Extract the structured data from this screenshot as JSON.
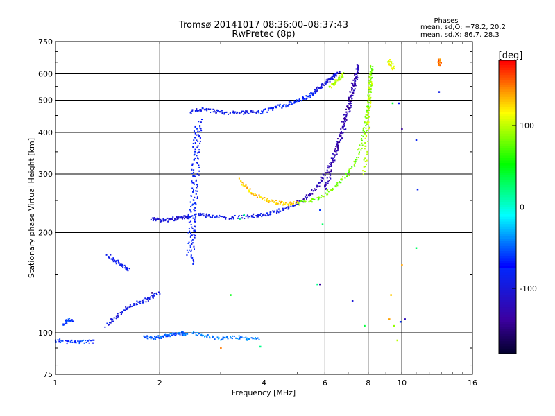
{
  "chart_data": {
    "type": "scatter",
    "title": "Tromsø 20141017 08:36:00–08:37:43",
    "subtitle": "RwPretec (8p)",
    "xlabel": "Frequency [MHz]",
    "ylabel": "Stationary phase Virtual Height [km]",
    "x_scale": "log",
    "y_scale": "log",
    "xlim": [
      1,
      16
    ],
    "ylim": [
      75,
      750
    ],
    "x_ticks": [
      1,
      2,
      4,
      6,
      8,
      10,
      16
    ],
    "y_ticks": [
      75,
      100,
      200,
      300,
      400,
      500,
      600,
      750
    ],
    "grid": true,
    "phases_box": {
      "title": "Phases",
      "line_o": "mean, sd,O: −78.2, 20.2",
      "line_x": "mean, sd,X:  86.7, 28.3"
    },
    "colorbar": {
      "label": "[deg]",
      "range": [
        -180,
        180
      ],
      "ticks": [
        100,
        0,
        -100
      ]
    },
    "traces": [
      {
        "x": [
          1.0,
          1.09,
          1.18,
          1.3
        ],
        "y": [
          95,
          94,
          94,
          94
        ],
        "phase": -60
      },
      {
        "x": [
          1.06,
          1.09,
          1.12
        ],
        "y": [
          105,
          110,
          108
        ],
        "phase": -60
      },
      {
        "x": [
          1.9,
          1.99,
          2.1,
          2.2,
          2.3,
          2.4,
          2.45
        ],
        "y": [
          220,
          218,
          218,
          220,
          222,
          222,
          225
        ],
        "phase": -100
      },
      {
        "x": [
          1.42,
          1.5,
          1.58,
          1.62
        ],
        "y": [
          170,
          163,
          158,
          155
        ],
        "phase": -80
      },
      {
        "x": [
          2.48,
          2.5,
          2.52,
          2.55,
          2.58,
          2.6,
          2.62
        ],
        "y": [
          160,
          190,
          220,
          260,
          320,
          380,
          440
        ],
        "phase": -80
      },
      {
        "x": [
          2.42,
          2.45,
          2.48,
          2.5,
          2.52,
          2.55
        ],
        "y": [
          170,
          210,
          250,
          300,
          360,
          420
        ],
        "phase": -70
      },
      {
        "x": [
          2.45,
          2.6,
          2.8,
          3.0,
          3.3,
          3.6,
          3.9
        ],
        "y": [
          460,
          470,
          465,
          460,
          458,
          460,
          462
        ],
        "phase": -90
      },
      {
        "x": [
          3.9,
          4.2,
          4.5,
          4.8,
          5.1,
          5.4,
          5.6
        ],
        "y": [
          460,
          470,
          480,
          490,
          500,
          515,
          530
        ],
        "phase": -70
      },
      {
        "x": [
          5.6,
          5.8,
          6.0,
          6.2,
          6.4,
          6.6
        ],
        "y": [
          530,
          545,
          560,
          575,
          590,
          610
        ],
        "phase": -100
      },
      {
        "x": [
          2.55,
          2.7,
          2.9,
          3.2,
          3.5,
          3.8,
          4.1,
          4.4,
          4.7,
          5.0
        ],
        "y": [
          226,
          225,
          224,
          222,
          223,
          225,
          228,
          232,
          238,
          245
        ],
        "phase": -90
      },
      {
        "x": [
          5.0,
          5.3,
          5.6,
          5.9,
          6.2,
          6.5,
          6.8,
          7.0,
          7.2,
          7.35,
          7.45,
          7.5
        ],
        "y": [
          245,
          255,
          270,
          290,
          320,
          360,
          410,
          460,
          520,
          570,
          610,
          640
        ],
        "phase": -120
      },
      {
        "x": [
          6.0,
          6.2,
          6.4,
          6.6,
          6.8,
          7.0,
          7.2,
          7.35
        ],
        "y": [
          270,
          300,
          340,
          380,
          430,
          480,
          540,
          600
        ],
        "phase": -130
      },
      {
        "x": [
          3.4,
          3.6,
          3.8,
          4.1,
          4.4,
          4.7,
          5.0
        ],
        "y": [
          290,
          270,
          258,
          250,
          246,
          244,
          245
        ],
        "phase": 130
      },
      {
        "x": [
          5.0,
          5.5,
          6.0,
          6.5,
          7.0,
          7.4,
          7.7,
          7.9,
          8.0,
          8.1,
          8.15,
          8.2
        ],
        "y": [
          245,
          250,
          260,
          278,
          300,
          330,
          380,
          430,
          480,
          540,
          600,
          640
        ],
        "phase": 80
      },
      {
        "x": [
          7.8,
          7.9,
          8.0,
          8.05,
          8.1,
          8.15
        ],
        "y": [
          300,
          360,
          420,
          480,
          540,
          600
        ],
        "phase": 100
      },
      {
        "x": [
          1.4,
          1.5,
          1.6,
          1.7,
          1.8,
          1.9,
          2.0
        ],
        "y": [
          105,
          112,
          118,
          122,
          125,
          128,
          132
        ],
        "phase": -90
      },
      {
        "x": [
          1.8,
          1.9,
          2.0,
          2.1,
          2.2,
          2.3,
          2.4
        ],
        "y": [
          98,
          96,
          97,
          98,
          99,
          100,
          99
        ],
        "phase": -50
      },
      {
        "x": [
          2.5,
          2.7,
          3.0,
          3.3,
          3.6,
          3.9
        ],
        "y": [
          100,
          98,
          96,
          97,
          96,
          96
        ],
        "phase": -40
      },
      {
        "x": [
          6.2,
          6.4,
          6.6,
          6.8
        ],
        "y": [
          550,
          565,
          580,
          600
        ],
        "phase": 100
      },
      {
        "x": [
          12.8,
          12.9
        ],
        "y": [
          660,
          640
        ],
        "phase": 150
      },
      {
        "x": [
          9.2,
          9.3,
          9.5
        ],
        "y": [
          660,
          640,
          620
        ],
        "phase": 110
      }
    ],
    "scatter_points": [
      {
        "x": 10.0,
        "y": 410,
        "phase": -140
      },
      {
        "x": 11.0,
        "y": 380,
        "phase": -80
      },
      {
        "x": 11.1,
        "y": 270,
        "phase": -80
      },
      {
        "x": 11.0,
        "y": 180,
        "phase": 30
      },
      {
        "x": 10.0,
        "y": 160,
        "phase": 140
      },
      {
        "x": 10.2,
        "y": 110,
        "phase": -120
      },
      {
        "x": 9.5,
        "y": 105,
        "phase": 90
      },
      {
        "x": 9.2,
        "y": 110,
        "phase": 140
      },
      {
        "x": 9.7,
        "y": 95,
        "phase": 100
      },
      {
        "x": 9.9,
        "y": 108,
        "phase": -60
      },
      {
        "x": 9.3,
        "y": 130,
        "phase": 130
      },
      {
        "x": 12.8,
        "y": 530,
        "phase": -90
      },
      {
        "x": 9.8,
        "y": 490,
        "phase": -70
      },
      {
        "x": 9.4,
        "y": 490,
        "phase": 40
      },
      {
        "x": 7.8,
        "y": 105,
        "phase": 40
      },
      {
        "x": 7.2,
        "y": 125,
        "phase": -100
      },
      {
        "x": 5.8,
        "y": 140,
        "phase": -140
      },
      {
        "x": 5.7,
        "y": 140,
        "phase": 20
      },
      {
        "x": 5.9,
        "y": 212,
        "phase": 30
      },
      {
        "x": 5.8,
        "y": 234,
        "phase": -60
      },
      {
        "x": 3.2,
        "y": 130,
        "phase": 50
      },
      {
        "x": 3.0,
        "y": 90,
        "phase": 150
      },
      {
        "x": 3.9,
        "y": 91,
        "phase": 20
      },
      {
        "x": 1.9,
        "y": 132,
        "phase": -150
      },
      {
        "x": 3.4,
        "y": 220,
        "phase": 30
      },
      {
        "x": 3.5,
        "y": 226,
        "phase": 20
      }
    ]
  }
}
